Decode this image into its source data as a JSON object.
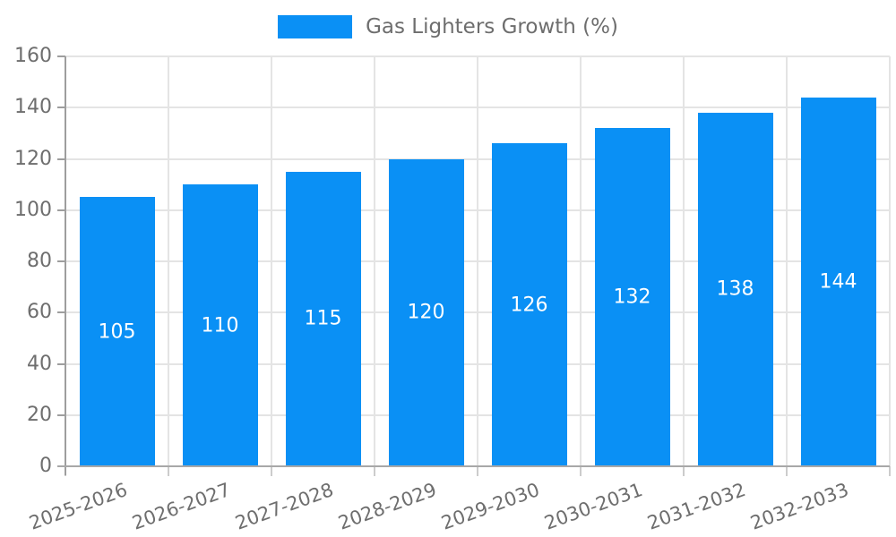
{
  "legend": {
    "label": "Gas Lighters Growth (%)"
  },
  "colors": {
    "bar": "#0a90f5",
    "bar_label_text": "#ffffff",
    "axis_line": "#9e9e9e",
    "gridline": "#e4e4e4",
    "tick_text": "#6e6e6e",
    "background": "#ffffff"
  },
  "chart_data": {
    "type": "bar",
    "title": "",
    "xlabel": "",
    "ylabel": "",
    "categories": [
      "2025-2026",
      "2026-2027",
      "2027-2028",
      "2028-2029",
      "2029-2030",
      "2030-2031",
      "2031-2032",
      "2032-2033"
    ],
    "series": [
      {
        "name": "Gas Lighters Growth (%)",
        "values": [
          105,
          110,
          115,
          120,
          126,
          132,
          138,
          144
        ],
        "color": "#0a90f5"
      }
    ],
    "bar_value_labels": [
      "105",
      "110",
      "115",
      "120",
      "126",
      "132",
      "138",
      "144"
    ],
    "ylim": [
      0,
      160
    ],
    "yticks": [
      0,
      20,
      40,
      60,
      80,
      100,
      120,
      140,
      160
    ],
    "grid": "on",
    "legend_position": "top-center",
    "x_tick_label_rotation_deg": 20
  }
}
